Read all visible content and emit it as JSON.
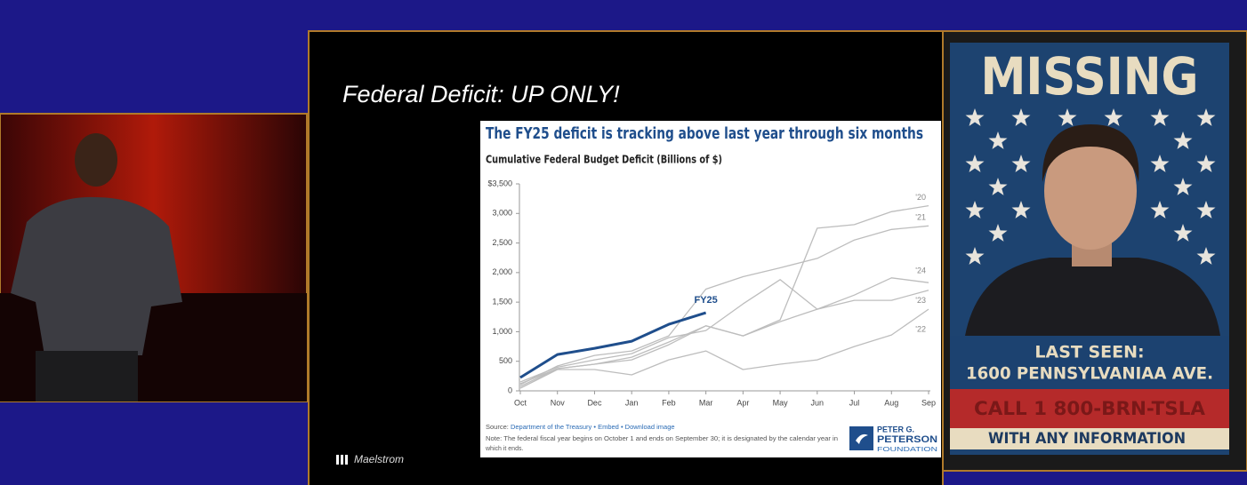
{
  "slide": {
    "title": "Federal Deficit: UP ONLY!",
    "brand": "Maelstrom"
  },
  "chart_data": {
    "type": "line",
    "title": "The FY25 deficit is tracking above last year through six months",
    "subtitle": "Cumulative Federal Budget Deficit (Billions of $)",
    "categories": [
      "Oct",
      "Nov",
      "Dec",
      "Jan",
      "Feb",
      "Mar",
      "Apr",
      "May",
      "Jun",
      "Jul",
      "Aug",
      "Sep"
    ],
    "ylim": [
      0,
      3500
    ],
    "yticks": [
      0,
      500,
      {
        "value": 1000,
        "label": "1,000"
      },
      {
        "value": 1500,
        "label": "1,500"
      },
      {
        "value": 2000,
        "label": "2,000"
      },
      {
        "value": 2500,
        "label": "2,500"
      },
      {
        "value": 3000,
        "label": "3,000"
      },
      {
        "value": 3500,
        "label": "$3,500"
      }
    ],
    "grid": false,
    "series": [
      {
        "name": "'20",
        "color": "#bdbdbd",
        "values": [
          120,
          375,
          450,
          570,
          825,
          1100,
          930,
          1200,
          2750,
          2810,
          3030,
          3130
        ]
      },
      {
        "name": "'21",
        "color": "#bdbdbd",
        "values": [
          105,
          420,
          600,
          675,
          930,
          1720,
          1930,
          2080,
          2240,
          2550,
          2730,
          2790
        ]
      },
      {
        "name": "'24",
        "color": "#bdbdbd",
        "values": [
          75,
          375,
          450,
          525,
          780,
          1100,
          930,
          1170,
          1380,
          1620,
          1910,
          1830
        ]
      },
      {
        "name": "'23",
        "color": "#bdbdbd",
        "values": [
          150,
          400,
          525,
          630,
          900,
          1020,
          1470,
          1880,
          1380,
          1530,
          1530,
          1700
        ]
      },
      {
        "name": "'22",
        "color": "#bdbdbd",
        "values": [
          45,
          360,
          360,
          270,
          525,
          675,
          360,
          450,
          525,
          750,
          945,
          1380
        ]
      },
      {
        "name": "FY25",
        "color": "#1f4e8c",
        "values": [
          225,
          615,
          720,
          840,
          1125,
          1320,
          null,
          null,
          null,
          null,
          null,
          null
        ]
      }
    ],
    "source_label": "Source:",
    "source": "Department of the Treasury",
    "separator": "•",
    "links": [
      "Embed",
      "Download image"
    ],
    "note": [
      "Note: The federal fiscal year begins on October 1 and ends on September 30; it is designated by the calendar year in",
      "which it ends."
    ],
    "logo": [
      "PETER G.",
      "PETERSON",
      "FOUNDATION"
    ]
  },
  "poster": {
    "headline": "MISSING",
    "last_seen": [
      "LAST SEEN:",
      "1600 PENNSYLVANIAA AVE."
    ],
    "call": "CALL 1 800-BRN-TSLA",
    "footer": "WITH ANY INFORMATION"
  }
}
